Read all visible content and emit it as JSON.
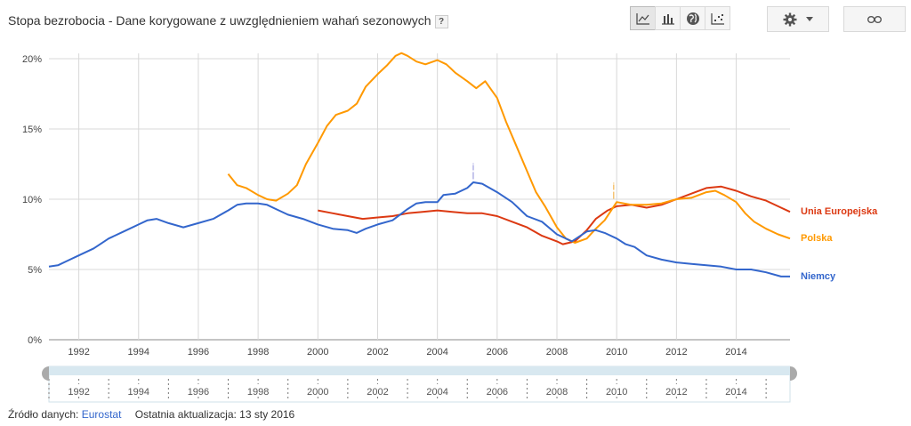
{
  "title": "Stopa bezrobocia - Dane korygowane z uwzględnieniem wahań sezonowych",
  "help_label": "?",
  "toolbar": {
    "chart_types": [
      {
        "icon": "line-chart-icon",
        "active": true
      },
      {
        "icon": "bar-chart-icon",
        "active": false
      },
      {
        "icon": "globe-map-icon",
        "active": false
      },
      {
        "icon": "scatter-chart-icon",
        "active": false
      }
    ],
    "settings_icon": "gear-icon",
    "dropdown_icon": "caret-down-icon",
    "link_icon": "link-icon"
  },
  "footer": {
    "source_label": "Źródło danych:",
    "source_link": "Eurostat",
    "updated": "Ostatnia aktualizacja: 13 sty 2016"
  },
  "chart_data": {
    "type": "line",
    "xlim": [
      1991,
      2015.8
    ],
    "ylim": [
      0,
      20
    ],
    "yticks": [
      0,
      5,
      10,
      15,
      20
    ],
    "ytick_labels": [
      "0%",
      "5%",
      "10%",
      "15%",
      "20%"
    ],
    "xticks": [
      1992,
      1994,
      1996,
      1998,
      2000,
      2002,
      2004,
      2006,
      2008,
      2010,
      2012,
      2014
    ],
    "xtick_labels": [
      "1992",
      "1994",
      "1996",
      "1998",
      "2000",
      "2002",
      "2004",
      "2006",
      "2008",
      "2010",
      "2012",
      "2014"
    ],
    "grid": true,
    "legend_position": "right",
    "annotations": [
      {
        "label": "i",
        "x": 2005.2,
        "y": 11.3,
        "color": "#8c8cd9"
      },
      {
        "label": "i",
        "x": 2009.9,
        "y": 9.9,
        "color": "#f0a830"
      }
    ],
    "series": [
      {
        "name": "Unia Europejska",
        "color": "#dc3912",
        "end_value": 9.1,
        "points": [
          [
            2000.0,
            9.2
          ],
          [
            2000.5,
            9.0
          ],
          [
            2001.0,
            8.8
          ],
          [
            2001.5,
            8.6
          ],
          [
            2002.0,
            8.7
          ],
          [
            2002.5,
            8.8
          ],
          [
            2003.0,
            9.0
          ],
          [
            2003.5,
            9.1
          ],
          [
            2004.0,
            9.2
          ],
          [
            2004.5,
            9.1
          ],
          [
            2005.0,
            9.0
          ],
          [
            2005.5,
            9.0
          ],
          [
            2006.0,
            8.8
          ],
          [
            2006.5,
            8.4
          ],
          [
            2007.0,
            8.0
          ],
          [
            2007.5,
            7.4
          ],
          [
            2008.0,
            7.0
          ],
          [
            2008.2,
            6.8
          ],
          [
            2008.6,
            7.0
          ],
          [
            2009.0,
            7.8
          ],
          [
            2009.3,
            8.6
          ],
          [
            2009.7,
            9.2
          ],
          [
            2010.0,
            9.5
          ],
          [
            2010.5,
            9.6
          ],
          [
            2011.0,
            9.4
          ],
          [
            2011.5,
            9.6
          ],
          [
            2012.0,
            10.0
          ],
          [
            2012.5,
            10.4
          ],
          [
            2013.0,
            10.8
          ],
          [
            2013.5,
            10.9
          ],
          [
            2014.0,
            10.6
          ],
          [
            2014.5,
            10.2
          ],
          [
            2015.0,
            9.9
          ],
          [
            2015.5,
            9.4
          ],
          [
            2015.8,
            9.1
          ]
        ]
      },
      {
        "name": "Polska",
        "color": "#ff9900",
        "end_value": 7.2,
        "points": [
          [
            1997.0,
            11.8
          ],
          [
            1997.3,
            11.0
          ],
          [
            1997.6,
            10.8
          ],
          [
            1998.0,
            10.3
          ],
          [
            1998.3,
            10.0
          ],
          [
            1998.6,
            9.9
          ],
          [
            1999.0,
            10.4
          ],
          [
            1999.3,
            11.0
          ],
          [
            1999.6,
            12.5
          ],
          [
            2000.0,
            14.0
          ],
          [
            2000.3,
            15.2
          ],
          [
            2000.6,
            16.0
          ],
          [
            2001.0,
            16.3
          ],
          [
            2001.3,
            16.8
          ],
          [
            2001.6,
            18.0
          ],
          [
            2002.0,
            18.9
          ],
          [
            2002.3,
            19.5
          ],
          [
            2002.6,
            20.2
          ],
          [
            2002.8,
            20.4
          ],
          [
            2003.0,
            20.2
          ],
          [
            2003.3,
            19.8
          ],
          [
            2003.6,
            19.6
          ],
          [
            2004.0,
            19.9
          ],
          [
            2004.3,
            19.6
          ],
          [
            2004.6,
            19.0
          ],
          [
            2005.0,
            18.4
          ],
          [
            2005.3,
            17.9
          ],
          [
            2005.6,
            18.4
          ],
          [
            2006.0,
            17.2
          ],
          [
            2006.3,
            15.5
          ],
          [
            2006.6,
            14.0
          ],
          [
            2007.0,
            12.0
          ],
          [
            2007.3,
            10.5
          ],
          [
            2007.6,
            9.5
          ],
          [
            2008.0,
            8.0
          ],
          [
            2008.3,
            7.2
          ],
          [
            2008.6,
            6.9
          ],
          [
            2009.0,
            7.2
          ],
          [
            2009.3,
            7.9
          ],
          [
            2009.6,
            8.5
          ],
          [
            2010.0,
            9.8
          ],
          [
            2010.5,
            9.6
          ],
          [
            2011.0,
            9.6
          ],
          [
            2011.5,
            9.7
          ],
          [
            2012.0,
            10.0
          ],
          [
            2012.5,
            10.1
          ],
          [
            2013.0,
            10.5
          ],
          [
            2013.3,
            10.6
          ],
          [
            2013.6,
            10.3
          ],
          [
            2014.0,
            9.8
          ],
          [
            2014.3,
            9.0
          ],
          [
            2014.6,
            8.4
          ],
          [
            2015.0,
            7.9
          ],
          [
            2015.4,
            7.5
          ],
          [
            2015.8,
            7.2
          ]
        ]
      },
      {
        "name": "Niemcy",
        "color": "#3366cc",
        "end_value": 4.5,
        "points": [
          [
            1991.0,
            5.2
          ],
          [
            1991.3,
            5.3
          ],
          [
            1991.6,
            5.6
          ],
          [
            1992.0,
            6.0
          ],
          [
            1992.5,
            6.5
          ],
          [
            1993.0,
            7.2
          ],
          [
            1993.5,
            7.7
          ],
          [
            1994.0,
            8.2
          ],
          [
            1994.3,
            8.5
          ],
          [
            1994.6,
            8.6
          ],
          [
            1995.0,
            8.3
          ],
          [
            1995.5,
            8.0
          ],
          [
            1996.0,
            8.3
          ],
          [
            1996.5,
            8.6
          ],
          [
            1997.0,
            9.2
          ],
          [
            1997.3,
            9.6
          ],
          [
            1997.6,
            9.7
          ],
          [
            1998.0,
            9.7
          ],
          [
            1998.3,
            9.6
          ],
          [
            1998.6,
            9.3
          ],
          [
            1999.0,
            8.9
          ],
          [
            1999.5,
            8.6
          ],
          [
            2000.0,
            8.2
          ],
          [
            2000.5,
            7.9
          ],
          [
            2001.0,
            7.8
          ],
          [
            2001.3,
            7.6
          ],
          [
            2001.6,
            7.9
          ],
          [
            2002.0,
            8.2
          ],
          [
            2002.5,
            8.5
          ],
          [
            2003.0,
            9.3
          ],
          [
            2003.3,
            9.7
          ],
          [
            2003.6,
            9.8
          ],
          [
            2004.0,
            9.8
          ],
          [
            2004.2,
            10.3
          ],
          [
            2004.6,
            10.4
          ],
          [
            2005.0,
            10.8
          ],
          [
            2005.2,
            11.2
          ],
          [
            2005.5,
            11.1
          ],
          [
            2006.0,
            10.5
          ],
          [
            2006.5,
            9.8
          ],
          [
            2007.0,
            8.8
          ],
          [
            2007.5,
            8.4
          ],
          [
            2008.0,
            7.5
          ],
          [
            2008.5,
            7.0
          ],
          [
            2009.0,
            7.7
          ],
          [
            2009.3,
            7.8
          ],
          [
            2009.6,
            7.6
          ],
          [
            2010.0,
            7.2
          ],
          [
            2010.3,
            6.8
          ],
          [
            2010.6,
            6.6
          ],
          [
            2011.0,
            6.0
          ],
          [
            2011.5,
            5.7
          ],
          [
            2012.0,
            5.5
          ],
          [
            2012.5,
            5.4
          ],
          [
            2013.0,
            5.3
          ],
          [
            2013.5,
            5.2
          ],
          [
            2014.0,
            5.0
          ],
          [
            2014.5,
            5.0
          ],
          [
            2015.0,
            4.8
          ],
          [
            2015.5,
            4.5
          ],
          [
            2015.8,
            4.5
          ]
        ]
      }
    ]
  }
}
